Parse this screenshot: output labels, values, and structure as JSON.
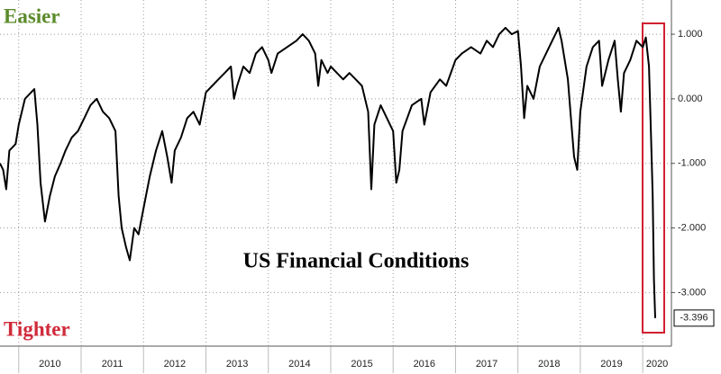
{
  "chart_data": {
    "type": "line",
    "title": "US Financial Conditions",
    "annotations": [
      "Easier",
      "Tighter"
    ],
    "xlim": [
      2009.7,
      2020.46
    ],
    "ylim": [
      -3.83,
      1.53
    ],
    "xticks": [
      2010,
      2011,
      2012,
      2013,
      2014,
      2015,
      2016,
      2017,
      2018,
      2019,
      2020
    ],
    "yticks": [
      {
        "value": 1,
        "label": "1.000"
      },
      {
        "value": 0,
        "label": "0.000"
      },
      {
        "value": -1,
        "label": "-1.000"
      },
      {
        "value": -2,
        "label": "-2.000"
      },
      {
        "value": -3,
        "label": "-3.000"
      }
    ],
    "grid": true,
    "color": "#000000",
    "x": [
      2009.7,
      2009.75,
      2009.8,
      2009.85,
      2009.95,
      2010.0,
      2010.1,
      2010.2,
      2010.25,
      2010.3,
      2010.35,
      2010.42,
      2010.5,
      2010.58,
      2010.67,
      2010.75,
      2010.85,
      2010.95,
      2011.05,
      2011.15,
      2011.25,
      2011.35,
      2011.45,
      2011.55,
      2011.6,
      2011.65,
      2011.72,
      2011.78,
      2011.85,
      2011.92,
      2012.0,
      2012.1,
      2012.2,
      2012.3,
      2012.38,
      2012.45,
      2012.5,
      2012.6,
      2012.7,
      2012.8,
      2012.9,
      2013.0,
      2013.1,
      2013.2,
      2013.3,
      2013.4,
      2013.45,
      2013.5,
      2013.6,
      2013.7,
      2013.8,
      2013.9,
      2014.0,
      2014.05,
      2014.15,
      2014.3,
      2014.45,
      2014.55,
      2014.65,
      2014.75,
      2014.8,
      2014.85,
      2014.95,
      2015.0,
      2015.1,
      2015.2,
      2015.3,
      2015.4,
      2015.5,
      2015.6,
      2015.65,
      2015.7,
      2015.8,
      2015.9,
      2016.0,
      2016.05,
      2016.1,
      2016.15,
      2016.3,
      2016.45,
      2016.5,
      2016.6,
      2016.75,
      2016.85,
      2017.0,
      2017.1,
      2017.25,
      2017.4,
      2017.5,
      2017.6,
      2017.7,
      2017.8,
      2017.9,
      2018.0,
      2018.05,
      2018.1,
      2018.15,
      2018.25,
      2018.35,
      2018.5,
      2018.65,
      2018.7,
      2018.8,
      2018.85,
      2018.9,
      2018.95,
      2019.0,
      2019.1,
      2019.2,
      2019.3,
      2019.35,
      2019.45,
      2019.55,
      2019.6,
      2019.65,
      2019.7,
      2019.8,
      2019.9,
      2020.0,
      2020.05,
      2020.1,
      2020.13,
      2020.16,
      2020.18,
      2020.2
    ],
    "values": [
      -1.0,
      -1.1,
      -1.4,
      -0.8,
      -0.7,
      -0.4,
      0.0,
      0.1,
      0.15,
      -0.4,
      -1.3,
      -1.9,
      -1.5,
      -1.2,
      -1.0,
      -0.8,
      -0.6,
      -0.5,
      -0.3,
      -0.1,
      0.0,
      -0.2,
      -0.3,
      -0.5,
      -1.5,
      -2.0,
      -2.3,
      -2.5,
      -2.0,
      -2.1,
      -1.7,
      -1.2,
      -0.8,
      -0.5,
      -0.9,
      -1.3,
      -0.8,
      -0.6,
      -0.3,
      -0.2,
      -0.4,
      0.1,
      0.2,
      0.3,
      0.4,
      0.5,
      0.0,
      0.2,
      0.5,
      0.4,
      0.7,
      0.8,
      0.6,
      0.4,
      0.7,
      0.8,
      0.9,
      1.0,
      0.9,
      0.7,
      0.2,
      0.6,
      0.4,
      0.5,
      0.4,
      0.3,
      0.4,
      0.3,
      0.2,
      -0.2,
      -1.4,
      -0.4,
      -0.1,
      -0.3,
      -0.5,
      -1.3,
      -1.1,
      -0.5,
      -0.1,
      0.0,
      -0.4,
      0.1,
      0.3,
      0.2,
      0.6,
      0.7,
      0.8,
      0.7,
      0.9,
      0.8,
      1.0,
      1.1,
      1.0,
      1.05,
      0.5,
      -0.3,
      0.2,
      0.0,
      0.5,
      0.8,
      1.1,
      0.9,
      0.3,
      -0.3,
      -0.9,
      -1.1,
      -0.2,
      0.5,
      0.8,
      0.9,
      0.2,
      0.6,
      0.9,
      0.3,
      -0.2,
      0.4,
      0.6,
      0.9,
      0.8,
      0.95,
      0.5,
      -0.5,
      -1.5,
      -2.8,
      -3.396
    ]
  }
}
